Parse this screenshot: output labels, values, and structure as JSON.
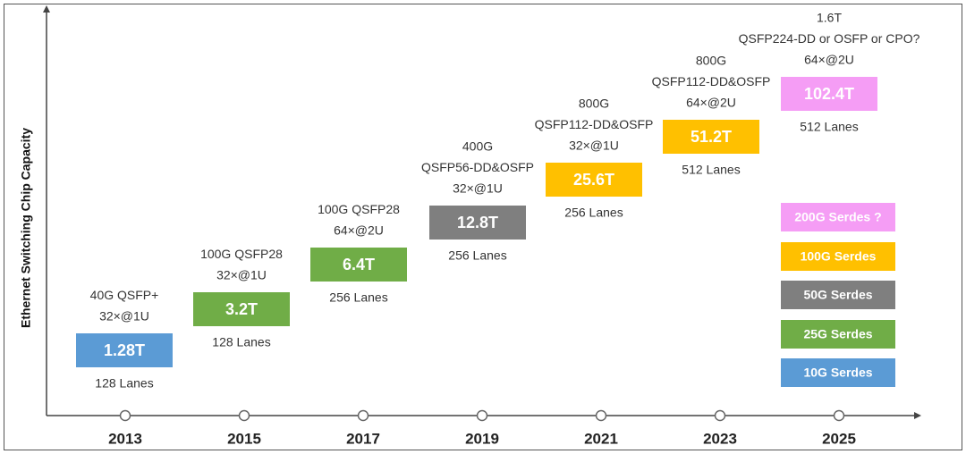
{
  "y_axis_label": "Ethernet Switching Chip Capacity",
  "milestones": [
    {
      "year": "2013",
      "specs": [
        "40G QSFP+",
        "32×@1U"
      ],
      "capacity": "1.28T",
      "lanes": "128 Lanes",
      "color": "#5b9bd5"
    },
    {
      "year": "2015",
      "specs": [
        "100G QSFP28",
        "32×@1U"
      ],
      "capacity": "3.2T",
      "lanes": "128 Lanes",
      "color": "#70ad47"
    },
    {
      "year": "2017",
      "specs": [
        "100G QSFP28",
        "64×@2U"
      ],
      "capacity": "6.4T",
      "lanes": "256 Lanes",
      "color": "#70ad47"
    },
    {
      "year": "2019",
      "specs": [
        "400G",
        "QSFP56-DD&OSFP",
        "32×@1U"
      ],
      "capacity": "12.8T",
      "lanes": "256 Lanes",
      "color": "#7f7f7f"
    },
    {
      "year": "2021",
      "specs": [
        "800G",
        "QSFP112-DD&OSFP",
        "32×@1U"
      ],
      "capacity": "25.6T",
      "lanes": "256 Lanes",
      "color": "#ffc000"
    },
    {
      "year": "2023",
      "specs": [
        "800G",
        "QSFP112-DD&OSFP",
        "64×@2U"
      ],
      "capacity": "51.2T",
      "lanes": "512 Lanes",
      "color": "#ffc000"
    },
    {
      "year": "2025",
      "specs": [
        "1.6T",
        "QSFP224-DD or OSFP or CPO?",
        "64×@2U"
      ],
      "capacity": "102.4T",
      "lanes": "512 Lanes",
      "color": "#f59df5"
    }
  ],
  "legend": [
    {
      "label": "200G Serdes ?",
      "color": "#f59df5"
    },
    {
      "label": "100G Serdes",
      "color": "#ffc000"
    },
    {
      "label": "50G Serdes",
      "color": "#7f7f7f"
    },
    {
      "label": "25G Serdes",
      "color": "#70ad47"
    },
    {
      "label": "10G Serdes",
      "color": "#5b9bd5"
    }
  ]
}
